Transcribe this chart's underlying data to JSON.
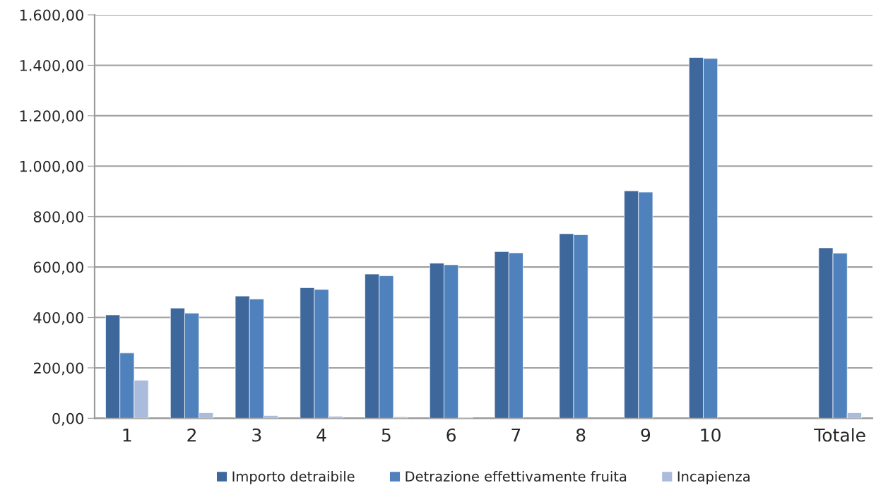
{
  "chart_data": {
    "type": "bar",
    "categories": [
      "1",
      "2",
      "3",
      "4",
      "5",
      "6",
      "7",
      "8",
      "9",
      "10",
      null,
      "Totale"
    ],
    "series": [
      {
        "name": "Importo detraibile",
        "color": "#3e679c",
        "values": [
          410,
          437,
          485,
          518,
          572,
          615,
          661,
          732,
          902,
          1431,
          null,
          676
        ]
      },
      {
        "name": "Detrazione effettivamente fruita",
        "color": "#4f81bd",
        "values": [
          259,
          417,
          473,
          511,
          565,
          609,
          656,
          728,
          897,
          1427,
          null,
          655
        ]
      },
      {
        "name": "Incapienza",
        "color": "#aabbdb",
        "values": [
          151,
          22,
          11,
          8,
          6,
          4,
          null,
          null,
          null,
          0,
          null,
          22
        ]
      }
    ],
    "ylim": [
      0,
      1600
    ],
    "yticks": [
      {
        "value": 0,
        "label": "0,00"
      },
      {
        "value": 200,
        "label": "200,00"
      },
      {
        "value": 400,
        "label": "400,00"
      },
      {
        "value": 600,
        "label": "600,00"
      },
      {
        "value": 800,
        "label": "800,00"
      },
      {
        "value": 1000,
        "label": "1.000,00"
      },
      {
        "value": 1200,
        "label": "1.200,00"
      },
      {
        "value": 1400,
        "label": "1.400,00"
      },
      {
        "value": 1600,
        "label": "1.600,00"
      }
    ],
    "grid": "y",
    "legend": "bottom"
  }
}
